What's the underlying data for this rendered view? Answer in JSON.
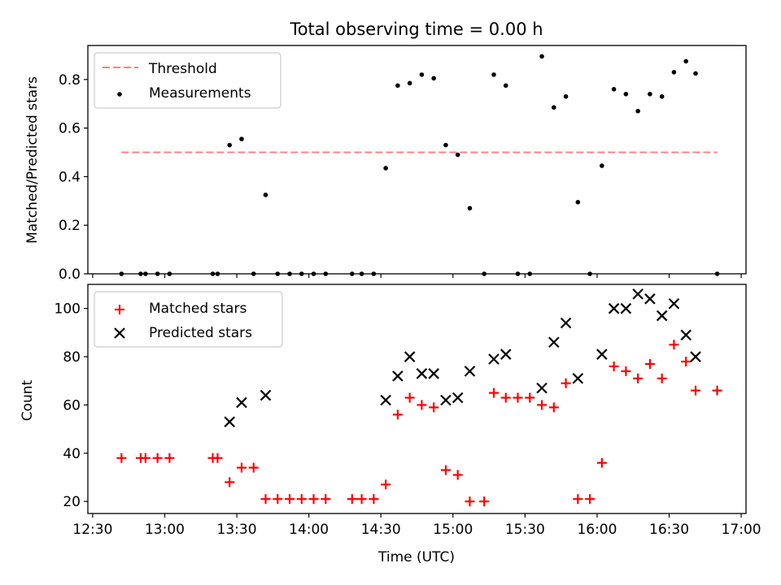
{
  "chart_data": [
    {
      "type": "scatter",
      "title": "Total observing time = 0.00 h",
      "xlabel": "",
      "ylabel": "Matched/Predicted stars",
      "ylim": [
        0,
        0.94
      ],
      "yticks": [
        0.0,
        0.2,
        0.4,
        0.6,
        0.8
      ],
      "ytick_labels": [
        "0.0",
        "0.2",
        "0.4",
        "0.6",
        "0.8"
      ],
      "legend_position": "top-left",
      "grid": false,
      "threshold": {
        "name": "Threshold",
        "color": "#ff8080",
        "from": "12:42",
        "to": "16:50",
        "value": 0.5
      },
      "series": [
        {
          "name": "Measurements",
          "color": "#000000",
          "points": [
            {
              "x": "12:42",
              "y": 0.0
            },
            {
              "x": "12:50",
              "y": 0.0
            },
            {
              "x": "12:52",
              "y": 0.0
            },
            {
              "x": "12:57",
              "y": 0.0
            },
            {
              "x": "13:02",
              "y": 0.0
            },
            {
              "x": "13:20",
              "y": 0.0
            },
            {
              "x": "13:22",
              "y": 0.0
            },
            {
              "x": "13:27",
              "y": 0.53
            },
            {
              "x": "13:32",
              "y": 0.555
            },
            {
              "x": "13:37",
              "y": 0.0
            },
            {
              "x": "13:42",
              "y": 0.325
            },
            {
              "x": "13:47",
              "y": 0.0
            },
            {
              "x": "13:52",
              "y": 0.0
            },
            {
              "x": "13:57",
              "y": 0.0
            },
            {
              "x": "14:02",
              "y": 0.0
            },
            {
              "x": "14:07",
              "y": 0.0
            },
            {
              "x": "14:18",
              "y": 0.0
            },
            {
              "x": "14:22",
              "y": 0.0
            },
            {
              "x": "14:27",
              "y": 0.0
            },
            {
              "x": "14:32",
              "y": 0.435
            },
            {
              "x": "14:37",
              "y": 0.775
            },
            {
              "x": "14:42",
              "y": 0.785
            },
            {
              "x": "14:47",
              "y": 0.82
            },
            {
              "x": "14:52",
              "y": 0.805
            },
            {
              "x": "14:57",
              "y": 0.53
            },
            {
              "x": "15:02",
              "y": 0.49
            },
            {
              "x": "15:07",
              "y": 0.27
            },
            {
              "x": "15:13",
              "y": 0.0
            },
            {
              "x": "15:17",
              "y": 0.82
            },
            {
              "x": "15:22",
              "y": 0.775
            },
            {
              "x": "15:27",
              "y": 0.0
            },
            {
              "x": "15:32",
              "y": 0.0
            },
            {
              "x": "15:37",
              "y": 0.895
            },
            {
              "x": "15:42",
              "y": 0.685
            },
            {
              "x": "15:47",
              "y": 0.73
            },
            {
              "x": "15:52",
              "y": 0.295
            },
            {
              "x": "15:57",
              "y": 0.0
            },
            {
              "x": "16:02",
              "y": 0.445
            },
            {
              "x": "16:07",
              "y": 0.76
            },
            {
              "x": "16:12",
              "y": 0.74
            },
            {
              "x": "16:17",
              "y": 0.67
            },
            {
              "x": "16:22",
              "y": 0.74
            },
            {
              "x": "16:27",
              "y": 0.73
            },
            {
              "x": "16:32",
              "y": 0.83
            },
            {
              "x": "16:37",
              "y": 0.875
            },
            {
              "x": "16:41",
              "y": 0.825
            },
            {
              "x": "16:50",
              "y": 0.0
            }
          ]
        }
      ]
    },
    {
      "type": "scatter",
      "title": "",
      "xlabel": "Time (UTC)",
      "ylabel": "Count",
      "xlim": [
        "12:28",
        "17:02"
      ],
      "ylim": [
        15,
        110
      ],
      "xticks": [
        "12:30",
        "13:00",
        "13:30",
        "14:00",
        "14:30",
        "15:00",
        "15:30",
        "16:00",
        "16:30",
        "17:00"
      ],
      "yticks": [
        20,
        40,
        60,
        80,
        100
      ],
      "ytick_labels": [
        "20",
        "40",
        "60",
        "80",
        "100"
      ],
      "legend_position": "top-left",
      "grid": false,
      "series": [
        {
          "name": "Matched stars",
          "color": "#ff0000",
          "marker": "plus",
          "points": [
            {
              "x": "12:42",
              "y": 38
            },
            {
              "x": "12:50",
              "y": 38
            },
            {
              "x": "12:52",
              "y": 38
            },
            {
              "x": "12:57",
              "y": 38
            },
            {
              "x": "13:02",
              "y": 38
            },
            {
              "x": "13:20",
              "y": 38
            },
            {
              "x": "13:22",
              "y": 38
            },
            {
              "x": "13:27",
              "y": 28
            },
            {
              "x": "13:32",
              "y": 34
            },
            {
              "x": "13:37",
              "y": 34
            },
            {
              "x": "13:42",
              "y": 21
            },
            {
              "x": "13:47",
              "y": 21
            },
            {
              "x": "13:52",
              "y": 21
            },
            {
              "x": "13:57",
              "y": 21
            },
            {
              "x": "14:02",
              "y": 21
            },
            {
              "x": "14:07",
              "y": 21
            },
            {
              "x": "14:18",
              "y": 21
            },
            {
              "x": "14:22",
              "y": 21
            },
            {
              "x": "14:27",
              "y": 21
            },
            {
              "x": "14:32",
              "y": 27
            },
            {
              "x": "14:37",
              "y": 56
            },
            {
              "x": "14:42",
              "y": 63
            },
            {
              "x": "14:47",
              "y": 60
            },
            {
              "x": "14:52",
              "y": 59
            },
            {
              "x": "14:57",
              "y": 33
            },
            {
              "x": "15:02",
              "y": 31
            },
            {
              "x": "15:07",
              "y": 20
            },
            {
              "x": "15:13",
              "y": 20
            },
            {
              "x": "15:17",
              "y": 65
            },
            {
              "x": "15:22",
              "y": 63
            },
            {
              "x": "15:27",
              "y": 63
            },
            {
              "x": "15:32",
              "y": 63
            },
            {
              "x": "15:37",
              "y": 60
            },
            {
              "x": "15:42",
              "y": 59
            },
            {
              "x": "15:47",
              "y": 69
            },
            {
              "x": "15:52",
              "y": 21
            },
            {
              "x": "15:57",
              "y": 21
            },
            {
              "x": "16:02",
              "y": 36
            },
            {
              "x": "16:07",
              "y": 76
            },
            {
              "x": "16:12",
              "y": 74
            },
            {
              "x": "16:17",
              "y": 71
            },
            {
              "x": "16:22",
              "y": 77
            },
            {
              "x": "16:27",
              "y": 71
            },
            {
              "x": "16:32",
              "y": 85
            },
            {
              "x": "16:37",
              "y": 78
            },
            {
              "x": "16:41",
              "y": 66
            },
            {
              "x": "16:50",
              "y": 66
            }
          ]
        },
        {
          "name": "Predicted stars",
          "color": "#000000",
          "marker": "x",
          "points": [
            {
              "x": "13:27",
              "y": 53
            },
            {
              "x": "13:32",
              "y": 61
            },
            {
              "x": "13:42",
              "y": 64
            },
            {
              "x": "14:32",
              "y": 62
            },
            {
              "x": "14:37",
              "y": 72
            },
            {
              "x": "14:42",
              "y": 80
            },
            {
              "x": "14:47",
              "y": 73
            },
            {
              "x": "14:52",
              "y": 73
            },
            {
              "x": "14:57",
              "y": 62
            },
            {
              "x": "15:02",
              "y": 63
            },
            {
              "x": "15:07",
              "y": 74
            },
            {
              "x": "15:17",
              "y": 79
            },
            {
              "x": "15:22",
              "y": 81
            },
            {
              "x": "15:37",
              "y": 67
            },
            {
              "x": "15:42",
              "y": 86
            },
            {
              "x": "15:47",
              "y": 94
            },
            {
              "x": "15:52",
              "y": 71
            },
            {
              "x": "16:02",
              "y": 81
            },
            {
              "x": "16:07",
              "y": 100
            },
            {
              "x": "16:12",
              "y": 100
            },
            {
              "x": "16:17",
              "y": 106
            },
            {
              "x": "16:22",
              "y": 104
            },
            {
              "x": "16:27",
              "y": 97
            },
            {
              "x": "16:32",
              "y": 102
            },
            {
              "x": "16:37",
              "y": 89
            },
            {
              "x": "16:41",
              "y": 80
            }
          ]
        }
      ]
    }
  ]
}
